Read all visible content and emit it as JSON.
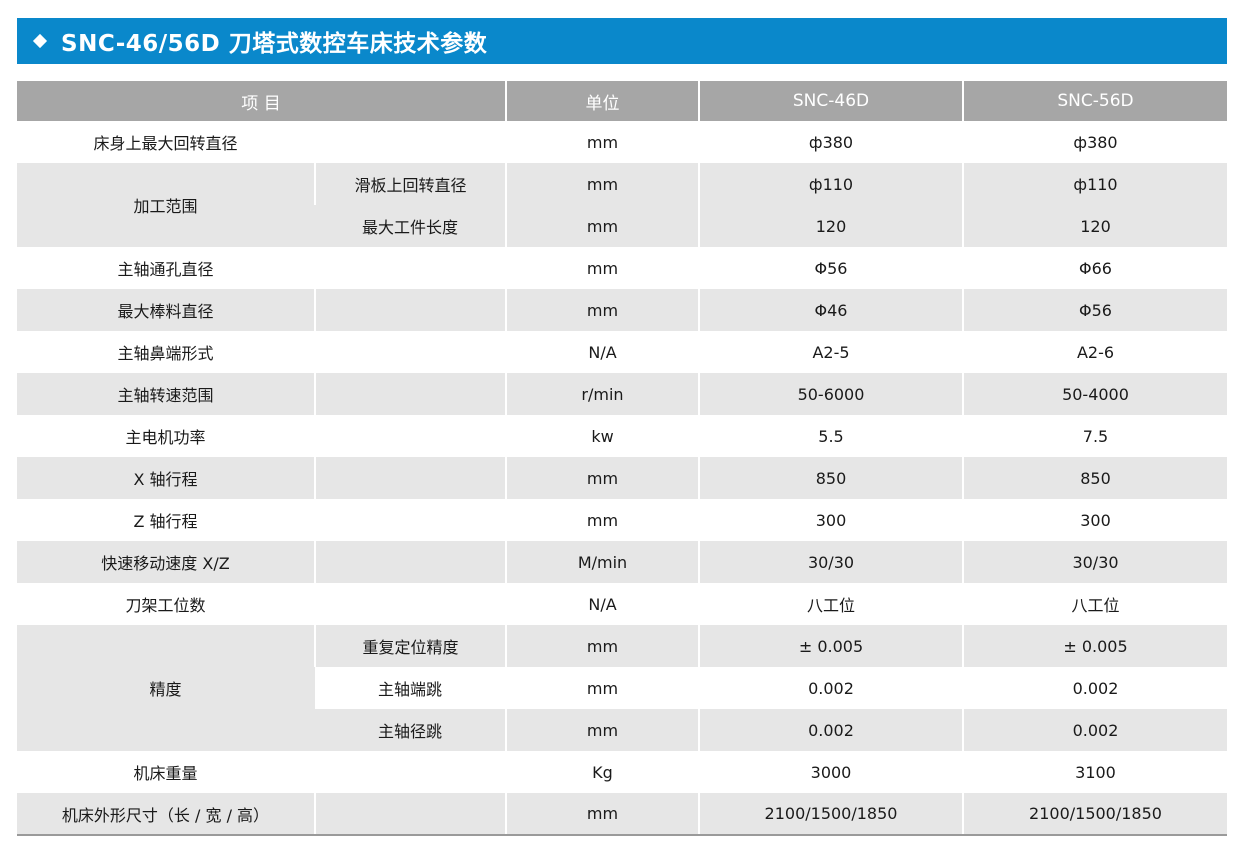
{
  "title": "SNC-46/56D 刀塔式数控车床技术参数",
  "headers": {
    "item": "项 目",
    "unit": "单位",
    "model_a": "SNC-46D",
    "model_b": "SNC-56D"
  },
  "rows": [
    {
      "item": "床身上最大回转直径",
      "sub": "",
      "unit": "mm",
      "a": "ф380",
      "b": "ф380"
    },
    {
      "item": "加工范围",
      "sub": "滑板上回转直径",
      "unit": "mm",
      "a": "ф110",
      "b": "ф110"
    },
    {
      "item": "",
      "sub": "最大工件长度",
      "unit": "mm",
      "a": "120",
      "b": "120"
    },
    {
      "item": "主轴通孔直径",
      "sub": "",
      "unit": "mm",
      "a": "Φ56",
      "b": "Φ66"
    },
    {
      "item": "最大棒料直径",
      "sub": "",
      "unit": "mm",
      "a": "Φ46",
      "b": "Φ56"
    },
    {
      "item": "主轴鼻端形式",
      "sub": "",
      "unit": "N/A",
      "a": "A2-5",
      "b": "A2-6"
    },
    {
      "item": "主轴转速范围",
      "sub": "",
      "unit": "r/min",
      "a": "50-6000",
      "b": "50-4000"
    },
    {
      "item": "主电机功率",
      "sub": "",
      "unit": "kw",
      "a": "5.5",
      "b": "7.5"
    },
    {
      "item": "X 轴行程",
      "sub": "",
      "unit": "mm",
      "a": "850",
      "b": "850"
    },
    {
      "item": "Z 轴行程",
      "sub": "",
      "unit": "mm",
      "a": "300",
      "b": "300"
    },
    {
      "item": "快速移动速度 X/Z",
      "sub": "",
      "unit": "M/min",
      "a": "30/30",
      "b": "30/30"
    },
    {
      "item": "刀架工位数",
      "sub": "",
      "unit": "N/A",
      "a": "八工位",
      "b": "八工位"
    },
    {
      "item": "精度",
      "sub": "重复定位精度",
      "unit": "mm",
      "a": "± 0.005",
      "b": "± 0.005"
    },
    {
      "item": "",
      "sub": "主轴端跳",
      "unit": "mm",
      "a": "0.002",
      "b": "0.002"
    },
    {
      "item": "",
      "sub": "主轴径跳",
      "unit": "mm",
      "a": "0.002",
      "b": "0.002"
    },
    {
      "item": "机床重量",
      "sub": "",
      "unit": "Kg",
      "a": "3000",
      "b": "3100"
    },
    {
      "item": "机床外形尺寸（长 / 宽 / 高）",
      "sub": "",
      "unit": "mm",
      "a": "2100/1500/1850",
      "b": "2100/1500/1850"
    }
  ],
  "colors": {
    "title_bar": "#0a88cb",
    "header_bg": "#a6a6a6",
    "stripe_bg": "#e6e6e6"
  }
}
